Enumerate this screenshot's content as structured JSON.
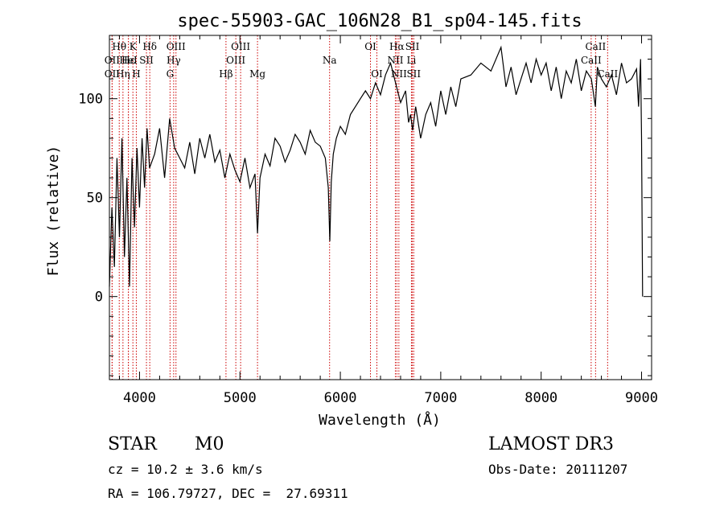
{
  "chart_data": {
    "type": "line",
    "title": "spec-55903-GAC_106N28_B1_sp04-145.fits",
    "xlabel": "Wavelength (Å)",
    "ylabel": "Flux (relative)",
    "xlim": [
      3700,
      9100
    ],
    "ylim": [
      -42,
      132
    ],
    "xticks": [
      4000,
      5000,
      6000,
      7000,
      8000,
      9000
    ],
    "yticks": [
      0,
      50,
      100
    ],
    "grid": false,
    "line_color": "#000000",
    "marker_color": "#cc0000",
    "series": [
      {
        "x": [
          3700,
          3725,
          3750,
          3775,
          3800,
          3825,
          3850,
          3875,
          3900,
          3925,
          3950,
          3975,
          4000,
          4025,
          4050,
          4075,
          4100,
          4150,
          4200,
          4250,
          4300,
          4350,
          4400,
          4450,
          4500,
          4550,
          4600,
          4650,
          4700,
          4750,
          4800,
          4850,
          4900,
          4950,
          5000,
          5050,
          5100,
          5150,
          5175,
          5200,
          5250,
          5300,
          5350,
          5400,
          5450,
          5500,
          5550,
          5600,
          5650,
          5700,
          5750,
          5800,
          5850,
          5880,
          5895,
          5910,
          5930,
          5960,
          6000,
          6050,
          6100,
          6150,
          6200,
          6250,
          6300,
          6350,
          6400,
          6450,
          6500,
          6550,
          6600,
          6650,
          6680,
          6700,
          6720,
          6750,
          6800,
          6850,
          6900,
          6950,
          7000,
          7050,
          7100,
          7150,
          7200,
          7300,
          7400,
          7500,
          7600,
          7650,
          7700,
          7750,
          7800,
          7850,
          7900,
          7950,
          8000,
          8050,
          8100,
          8150,
          8200,
          8250,
          8300,
          8350,
          8400,
          8450,
          8500,
          8540,
          8560,
          8600,
          8650,
          8700,
          8750,
          8800,
          8850,
          8900,
          8950,
          8970,
          8990,
          9000,
          9010
        ],
        "y": [
          5,
          45,
          15,
          70,
          30,
          80,
          20,
          60,
          5,
          70,
          35,
          75,
          45,
          80,
          55,
          85,
          65,
          72,
          85,
          60,
          90,
          75,
          70,
          65,
          78,
          62,
          80,
          70,
          82,
          68,
          74,
          60,
          72,
          64,
          58,
          70,
          55,
          62,
          32,
          60,
          72,
          66,
          80,
          76,
          68,
          74,
          82,
          78,
          72,
          84,
          78,
          76,
          70,
          55,
          28,
          58,
          72,
          80,
          86,
          82,
          92,
          96,
          100,
          104,
          100,
          108,
          102,
          112,
          118,
          108,
          98,
          104,
          88,
          92,
          84,
          96,
          80,
          92,
          98,
          86,
          104,
          92,
          106,
          96,
          110,
          112,
          118,
          114,
          126,
          106,
          116,
          102,
          110,
          118,
          108,
          120,
          112,
          118,
          104,
          116,
          100,
          114,
          108,
          120,
          104,
          114,
          110,
          96,
          116,
          110,
          106,
          112,
          102,
          118,
          108,
          110,
          115,
          96,
          120,
          80,
          0
        ]
      }
    ],
    "markers": [
      {
        "label": "Hθ",
        "x": 3798,
        "row": 0
      },
      {
        "label": "OII",
        "x": 3727,
        "row": 1
      },
      {
        "label": "OII",
        "x": 3727,
        "row": 2
      },
      {
        "label": "Hε",
        "x": 3889,
        "row": 1
      },
      {
        "label": "Hη",
        "x": 3835,
        "row": 2
      },
      {
        "label": "K",
        "x": 3934,
        "row": 0
      },
      {
        "label": "HeI",
        "x": 3889,
        "row": 1
      },
      {
        "label": "H",
        "x": 3968,
        "row": 2
      },
      {
        "label": "Hδ",
        "x": 4102,
        "row": 0
      },
      {
        "label": "SII",
        "x": 4069,
        "row": 1
      },
      {
        "label": "OIII",
        "x": 4363,
        "row": 0
      },
      {
        "label": "Hγ",
        "x": 4340,
        "row": 1
      },
      {
        "label": "G",
        "x": 4304,
        "row": 2
      },
      {
        "label": "OIII",
        "x": 5007,
        "row": 0
      },
      {
        "label": "OIII",
        "x": 4959,
        "row": 1
      },
      {
        "label": "Hβ",
        "x": 4861,
        "row": 2
      },
      {
        "label": "Mg",
        "x": 5175,
        "row": 2
      },
      {
        "label": "Na",
        "x": 5893,
        "row": 1
      },
      {
        "label": "OI",
        "x": 6300,
        "row": 0
      },
      {
        "label": "OI",
        "x": 6364,
        "row": 2
      },
      {
        "label": "Hα",
        "x": 6563,
        "row": 0
      },
      {
        "label": "SII",
        "x": 6717,
        "row": 0
      },
      {
        "label": "NII",
        "x": 6548,
        "row": 1
      },
      {
        "label": "Li",
        "x": 6708,
        "row": 1
      },
      {
        "label": "NII",
        "x": 6583,
        "row": 2
      },
      {
        "label": "SII",
        "x": 6731,
        "row": 2
      },
      {
        "label": "CaII",
        "x": 8542,
        "row": 0
      },
      {
        "label": "CaII",
        "x": 8498,
        "row": 1
      },
      {
        "label": "CaII",
        "x": 8662,
        "row": 2
      }
    ]
  },
  "info": {
    "object_class": "STAR",
    "subclass": "M0",
    "survey": "LAMOST DR3",
    "redshift": "cz = 10.2 ± 3.6 km/s",
    "obs_date": "Obs-Date: 20111207",
    "coords": "RA = 106.79727, DEC =  27.69311"
  }
}
